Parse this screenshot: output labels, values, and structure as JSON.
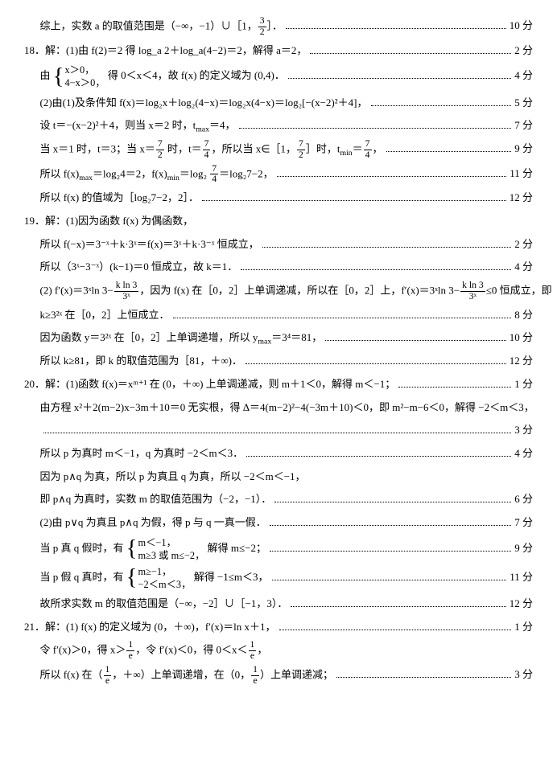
{
  "lines": [
    {
      "indent": 1,
      "content": "综上，实数 a 的取值范围是（−∞，−1）∪［1，3/2］．",
      "score": "10 分",
      "frac": {
        "pos": "end",
        "n": "3",
        "d": "2"
      }
    },
    {
      "indent": 0,
      "content": "18．解：(1)由 f(2)＝2 得 log_a 2＋log_a(4−2)＝2，解得 a＝2，",
      "score": "2 分"
    },
    {
      "indent": 1,
      "raw": true,
      "content": "由 {x>0, 4−x>0，得 0＜x＜4，故 f(x) 的定义域为 (0,4)．",
      "score": "4 分"
    },
    {
      "indent": 1,
      "content": "(2)由(1)及条件知 f(x)＝log₂x＋log₂(4−x)＝log₂x(4−x)＝log₂[−(x−2)²＋4]，",
      "score": "5 分"
    },
    {
      "indent": 1,
      "content": "设 t＝−(x−2)²＋4，则当 x＝2 时，t_max＝4，",
      "score": "7 分"
    },
    {
      "indent": 1,
      "content": "当 x＝1 时，t＝3；当 x＝7/2 时，t＝7/4，所以当 x∈［1，7/2］时，t_min＝7/4，",
      "score": "9 分"
    },
    {
      "indent": 1,
      "content": "所以 f(x)_max＝log₂4＝2，f(x)_min＝log₂ 7/4＝log₂7−2，",
      "score": "11 分"
    },
    {
      "indent": 1,
      "content": "所以 f(x) 的值域为［log₂7−2，2］．",
      "score": "12 分"
    },
    {
      "indent": 0,
      "content": "19．解：(1)因为函数 f(x) 为偶函数，",
      "score": ""
    },
    {
      "indent": 1,
      "content": "所以 f(−x)＝3⁻ˣ＋k·3ˣ＝f(x)＝3ˣ＋k·3⁻ˣ 恒成立，",
      "score": "2 分"
    },
    {
      "indent": 1,
      "content": "所以（3ˣ−3⁻ˣ）(k−1)＝0 恒成立，故 k＝1．",
      "score": "4 分"
    },
    {
      "indent": 1,
      "content": "(2) f′(x)＝3ˣln 3−(k ln 3)/3ˣ，因为 f(x) 在［0，2］上单调递减，所以在［0，2］上，f′(x)＝3ˣln 3−(k ln 3)/3ˣ≤0 恒成立，即",
      "score": ""
    },
    {
      "indent": 1,
      "content": "k≥3²ˣ 在［0，2］上恒成立．",
      "score": "8 分"
    },
    {
      "indent": 1,
      "content": "因为函数 y＝3²ˣ 在［0，2］上单调递增，所以 y_max＝3⁴＝81，",
      "score": "10 分"
    },
    {
      "indent": 1,
      "content": "所以 k≥81，即 k 的取值范围为［81，＋∞)．",
      "score": "12 分"
    },
    {
      "indent": 0,
      "content": "20．解：(1)函数 f(x)＝xᵐ⁺¹ 在 (0，＋∞) 上单调递减，则 m＋1＜0，解得 m＜−1；",
      "score": "1 分"
    },
    {
      "indent": 1,
      "content": "由方程 x²＋2(m−2)x−3m＋10＝0 无实根，得 Δ＝4(m−2)²−4(−3m＋10)＜0，即 m²−m−6＜0，解得 −2＜m＜3，",
      "score": ""
    },
    {
      "indent": 1,
      "content": "",
      "score": "3 分"
    },
    {
      "indent": 1,
      "content": "所以 p 为真时 m＜−1，q 为真时 −2＜m＜3．",
      "score": "4 分"
    },
    {
      "indent": 1,
      "content": "因为 p∧q 为真，所以 p 为真且 q 为真，所以 −2＜m＜−1，",
      "score": ""
    },
    {
      "indent": 1,
      "content": "即 p∧q 为真时，实数 m 的取值范围为（−2，−1）．",
      "score": "6 分"
    },
    {
      "indent": 1,
      "content": "(2)由 p∨q 为真且 p∧q 为假，得 p 与 q 一真一假．",
      "score": "7 分"
    },
    {
      "indent": 1,
      "raw": true,
      "content": "当 p 真 q 假时，有 {m<−1, m≥3 或 m≤−2, 解得 m≤−2；",
      "score": "9 分"
    },
    {
      "indent": 1,
      "raw": true,
      "content": "当 p 假 q 真时，有 {m≥−1, −2<m<3, 解得 −1≤m＜3，",
      "score": "11 分"
    },
    {
      "indent": 1,
      "content": "故所求实数 m 的取值范围是（−∞，−2］∪［−1，3）．",
      "score": "12 分"
    },
    {
      "indent": 0,
      "content": "21．解：(1) f(x) 的定义域为 (0，＋∞)，f′(x)＝ln x＋1，",
      "score": "1 分"
    },
    {
      "indent": 1,
      "content": "令 f′(x)＞0，得 x＞1/e，令 f′(x)＜0，得 0＜x＜1/e，",
      "score": ""
    },
    {
      "indent": 1,
      "content": "所以 f(x) 在（1/e，＋∞）上单调递增，在（0，1/e）上单调递减；",
      "score": "3 分"
    }
  ]
}
